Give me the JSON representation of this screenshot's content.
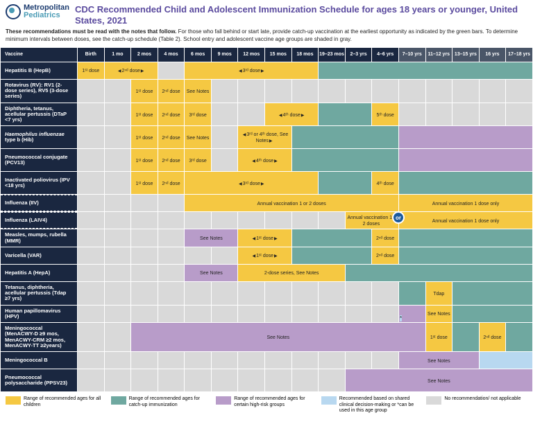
{
  "logo": {
    "line1": "Metropolitan",
    "line2": "Pediatrics"
  },
  "title": "CDC Recommended Child and Adolescent Immunization Schedule for ages 18 years or younger, United States, 2021",
  "intro_bold": "These recommendations must be read with the notes that follow.",
  "intro_rest": " For those who fall behind or start late, provide catch-up vaccination at the earliest opportunity as indicated by the green bars. To determine minimum intervals between doses, see the catch-up schedule (Table 2). School entry and adolescent vaccine age groups are shaded in gray.",
  "columns": [
    "Vaccine",
    "Birth",
    "1 mo",
    "2 mos",
    "4 mos",
    "6 mos",
    "9 mos",
    "12 mos",
    "15 mos",
    "18 mos",
    "19–23 mos",
    "2–3 yrs",
    "4–6 yrs",
    "7–10 yrs",
    "11–12 yrs",
    "13–15 yrs",
    "16 yrs",
    "17–18 yrs"
  ],
  "gray_header_start": 13,
  "colors": {
    "yellow": "#f5c842",
    "teal": "#6fa8a0",
    "purple": "#b89cc9",
    "ltblue": "#b8d8f0",
    "gray": "#d9d9d9",
    "header_bg": "#1a2740",
    "header_gray": "#4a5668",
    "title_color": "#5a4a9e"
  },
  "vaccines": {
    "hepb": "Hepatitis B (HepB)",
    "rota": "Rotavirus (RV): RV1 (2-dose series), RV5 (3-dose series)",
    "dtap": "Diphtheria, tetanus, acellular pertussis (DTaP <7 yrs)",
    "hib": "<em>Haemophilus influenzae</em> type b (Hib)",
    "pcv": "Pneumococcal conjugate (PCV13)",
    "ipv": "Inactivated poliovirus (IPV <18 yrs)",
    "iiv": "Influenza (IIV)",
    "laiv": "Influenza (LAIV4)",
    "mmr": "Measles, mumps, rubella (MMR)",
    "var": "Varicella (VAR)",
    "hepa": "Hepatitis A (HepA)",
    "tdap": "Tetanus, diphtheria, acellular pertussis (Tdap ≥7 yrs)",
    "hpv": "Human papillomavirus (HPV)",
    "menacwy": "Meningococcal (MenACWY-D ≥9 mos, MenACWY-CRM ≥2 mos, MenACWY-TT ≥2years)",
    "menb": "Meningococcal B",
    "ppsv": "Pneumococcal polysaccharide (PPSV23)"
  },
  "labels": {
    "dose1": "1ˢᵗ dose",
    "dose2": "2ⁿᵈ dose",
    "dose3": "3ʳᵈ dose",
    "dose4": "4ᵗʰ dose",
    "dose5": "5ᵗʰ dose",
    "see_notes": "See Notes",
    "dose34_notes": "3ʳᵈ or 4ᵗʰ dose, See Notes",
    "annual12": "Annual vaccination 1 or 2 doses",
    "annual1": "Annual vaccination 1 dose only",
    "hepa_series": "2-dose series, See Notes",
    "tdap_short": "Tdap",
    "or": "or",
    "star": "*"
  },
  "legend": [
    {
      "color": "yellow",
      "text": "Range of recommended ages for all children"
    },
    {
      "color": "teal",
      "text": "Range of recommended ages for catch-up immunization"
    },
    {
      "color": "purple",
      "text": "Range of recommended ages for certain high-risk groups"
    },
    {
      "color": "ltblue",
      "text": "Recommended based on shared clinical decision-making or *can be used in this age group"
    },
    {
      "color": "gray",
      "text": "No recommendation/ not applicable"
    }
  ]
}
